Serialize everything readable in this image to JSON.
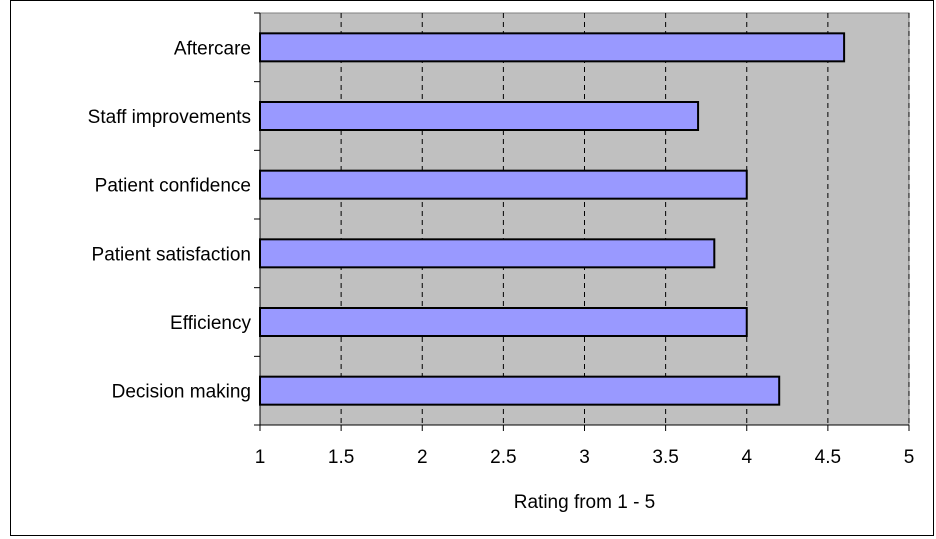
{
  "chart_data": {
    "type": "bar",
    "orientation": "horizontal",
    "categories": [
      "Aftercare",
      "Staff improvements",
      "Patient confidence",
      "Patient satisfaction",
      "Efficiency",
      "Decision making"
    ],
    "values": [
      4.6,
      3.7,
      4.0,
      3.8,
      4.0,
      4.2
    ],
    "xlabel": "Rating from 1 - 5",
    "ylabel": "",
    "xlim": [
      1,
      5
    ],
    "xticks": [
      "1",
      "1.5",
      "2",
      "2.5",
      "3",
      "3.5",
      "4",
      "4.5",
      "5"
    ],
    "grid": "vertical dashed",
    "colors": {
      "bar_fill": "#9999FF",
      "bar_stroke": "#000000",
      "plot_background": "#C0C0C0",
      "grid": "#000000"
    }
  }
}
